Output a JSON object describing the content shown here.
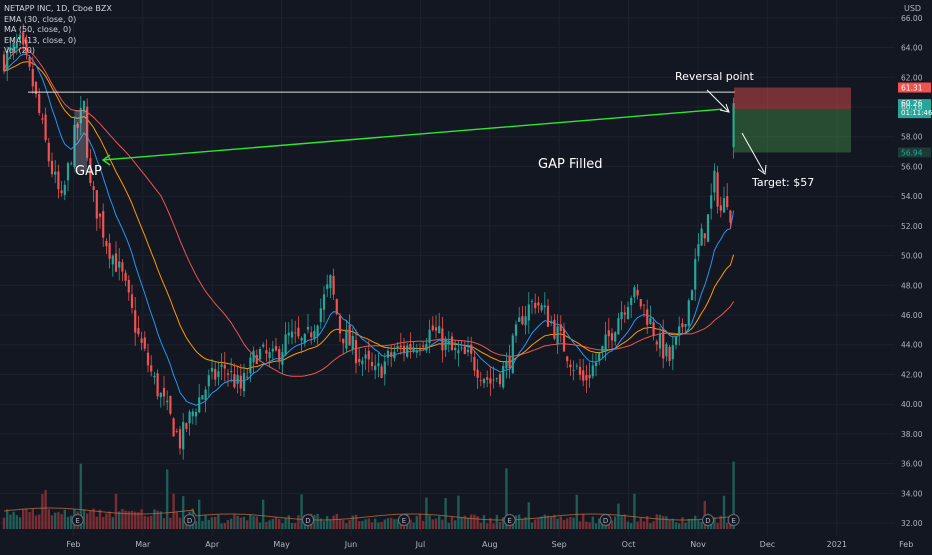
{
  "legend": {
    "symbol": "NETAPP INC, 1D, Cboe BZX",
    "ema30": "EMA (30, close, 0)",
    "ma50": "MA (50, close, 0)",
    "ema13": "EMA (13, close, 0)",
    "vol": "Vol (20)"
  },
  "currency": "USD",
  "colors": {
    "background": "#131722",
    "grid": "#1e222d",
    "up": "#26a69a",
    "down": "#ef5350",
    "up_volume": "#1f5d57",
    "down_volume": "#7a2e33",
    "ema13": "#2196f3",
    "ma50": "#ef5350",
    "ema30": "#ff9800",
    "gap_line": "#2ee62e"
  },
  "chart_data": {
    "type": "candlestick",
    "ylim": [
      31.6,
      67.2
    ],
    "y_ticks": [
      "66.00",
      "64.00",
      "62.00",
      "60.00",
      "58.00",
      "56.00",
      "54.00",
      "52.00",
      "50.00",
      "48.00",
      "46.00",
      "44.00",
      "42.00",
      "40.00",
      "38.00",
      "36.00",
      "34.00",
      "32.00"
    ],
    "x_ticks": [
      {
        "label": "Feb",
        "month_index": 1
      },
      {
        "label": "Mar",
        "month_index": 2
      },
      {
        "label": "Apr",
        "month_index": 3
      },
      {
        "label": "May",
        "month_index": 4
      },
      {
        "label": "Jun",
        "month_index": 5
      },
      {
        "label": "Jul",
        "month_index": 6
      },
      {
        "label": "Aug",
        "month_index": 7
      },
      {
        "label": "Sep",
        "month_index": 8
      },
      {
        "label": "Oct",
        "month_index": 9
      },
      {
        "label": "Nov",
        "month_index": 10
      },
      {
        "label": "Dec",
        "month_index": 11
      },
      {
        "label": "2021",
        "month_index": 12
      },
      {
        "label": "Feb",
        "month_index": 13
      }
    ],
    "price_path": [
      {
        "t": 0,
        "price": 63.2
      },
      {
        "t": 5,
        "price": 64.2
      },
      {
        "t": 9,
        "price": 61.5
      },
      {
        "t": 14,
        "price": 56.5
      },
      {
        "t": 18,
        "price": 53.5
      },
      {
        "t": 22,
        "price": 58.0
      },
      {
        "t": 25,
        "price": 60.0
      },
      {
        "t": 27,
        "price": 54.5
      },
      {
        "t": 32,
        "price": 51.0
      },
      {
        "t": 37,
        "price": 48.5
      },
      {
        "t": 42,
        "price": 44.5
      },
      {
        "t": 47,
        "price": 41.5
      },
      {
        "t": 51,
        "price": 39.5
      },
      {
        "t": 55,
        "price": 37.5
      },
      {
        "t": 60,
        "price": 40.0
      },
      {
        "t": 64,
        "price": 41.5
      },
      {
        "t": 69,
        "price": 42.5
      },
      {
        "t": 74,
        "price": 41.0
      },
      {
        "t": 79,
        "price": 43.5
      },
      {
        "t": 84,
        "price": 43.0
      },
      {
        "t": 89,
        "price": 44.5
      },
      {
        "t": 94,
        "price": 44.0
      },
      {
        "t": 99,
        "price": 46.5
      },
      {
        "t": 102,
        "price": 48.2
      },
      {
        "t": 105,
        "price": 45.0
      },
      {
        "t": 110,
        "price": 43.5
      },
      {
        "t": 116,
        "price": 42.0
      },
      {
        "t": 122,
        "price": 43.5
      },
      {
        "t": 128,
        "price": 44.0
      },
      {
        "t": 134,
        "price": 45.0
      },
      {
        "t": 140,
        "price": 43.5
      },
      {
        "t": 146,
        "price": 43.0
      },
      {
        "t": 152,
        "price": 41.5
      },
      {
        "t": 157,
        "price": 42.5
      },
      {
        "t": 162,
        "price": 46.0
      },
      {
        "t": 166,
        "price": 47.0
      },
      {
        "t": 171,
        "price": 45.5
      },
      {
        "t": 176,
        "price": 43.5
      },
      {
        "t": 181,
        "price": 41.5
      },
      {
        "t": 187,
        "price": 43.5
      },
      {
        "t": 192,
        "price": 46.0
      },
      {
        "t": 196,
        "price": 47.5
      },
      {
        "t": 200,
        "price": 46.5
      },
      {
        "t": 205,
        "price": 44.0
      },
      {
        "t": 208,
        "price": 43.0
      },
      {
        "t": 211,
        "price": 44.5
      },
      {
        "t": 214,
        "price": 47.0
      },
      {
        "t": 217,
        "price": 50.5
      },
      {
        "t": 220,
        "price": 52.5
      },
      {
        "t": 222,
        "price": 55.0
      },
      {
        "t": 224,
        "price": 53.0
      },
      {
        "t": 226,
        "price": 54.0
      },
      {
        "t": 227,
        "price": 53.0
      },
      {
        "t": 228,
        "price": 60.26
      }
    ],
    "volume_spike_days": [
      24,
      51,
      157,
      228
    ],
    "earnings_markers": [
      {
        "t": 23,
        "label": "E"
      },
      {
        "t": 58,
        "label": "D"
      },
      {
        "t": 95,
        "label": "D"
      },
      {
        "t": 125,
        "label": "E"
      },
      {
        "t": 158,
        "label": "E"
      },
      {
        "t": 188,
        "label": "D"
      },
      {
        "t": 220,
        "label": "D"
      },
      {
        "t": 228,
        "label": "E"
      }
    ],
    "price_labels": {
      "stop": {
        "value": 61.31,
        "text": "61.31",
        "color": "#ef5350"
      },
      "last": {
        "value": 60.26,
        "text": "60.26",
        "countdown": "01:11:46",
        "color": "#26a69a"
      },
      "gray": {
        "value": 60.16,
        "text": "60.16"
      },
      "target": {
        "value": 56.94,
        "text": "56.94",
        "color": "#26a69a"
      }
    },
    "annotations": {
      "reversal_text": "Reversal point",
      "gap_text": "GAP",
      "gap_filled_text": "GAP Filled",
      "target_text": "Target: $57",
      "resistance_level": 61.0,
      "gap_box": {
        "t_start": 22,
        "t_end": 26,
        "price_high": 59.8,
        "price_low": 55.6
      },
      "risk_box": {
        "price_top": 61.31,
        "price_mid": 59.84,
        "price_bottom": 56.94
      }
    }
  }
}
